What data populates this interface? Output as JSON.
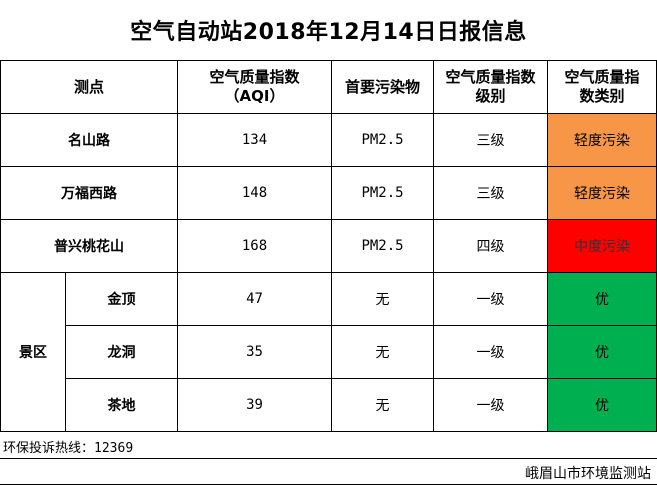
{
  "title": "空气自动站2018年12月14日日报信息",
  "headers": {
    "site": "测点",
    "aqi_line1": "空气质量指数",
    "aqi_line2": "（AQI）",
    "pollutant": "首要污染物",
    "level_line1": "空气质量指数",
    "level_line2": "级别",
    "cat_line1": "空气质量指",
    "cat_line2": "数类别"
  },
  "colors": {
    "light_pollution": "#f79646",
    "moderate_pollution": "#ff0000",
    "excellent": "#00b050"
  },
  "rows": [
    {
      "site": "名山路",
      "aqi": "134",
      "pollutant": "PM2.5",
      "level": "三级",
      "category": "轻度污染"
    },
    {
      "site": "万福西路",
      "aqi": "148",
      "pollutant": "PM2.5",
      "level": "三级",
      "category": "轻度污染"
    },
    {
      "site": "普兴桃花山",
      "aqi": "168",
      "pollutant": "PM2.5",
      "level": "四级",
      "category": "中度污染"
    }
  ],
  "scenic": {
    "group_label": "景区",
    "rows": [
      {
        "site": "金顶",
        "aqi": "47",
        "pollutant": "无",
        "level": "一级",
        "category": "优"
      },
      {
        "site": "龙洞",
        "aqi": "35",
        "pollutant": "无",
        "level": "一级",
        "category": "优"
      },
      {
        "site": "茶地",
        "aqi": "39",
        "pollutant": "无",
        "level": "一级",
        "category": "优"
      }
    ]
  },
  "footer": {
    "hotline_label": "环保投诉热线：",
    "hotline_number": "12369",
    "issuer": "峨眉山市环境监测站"
  }
}
